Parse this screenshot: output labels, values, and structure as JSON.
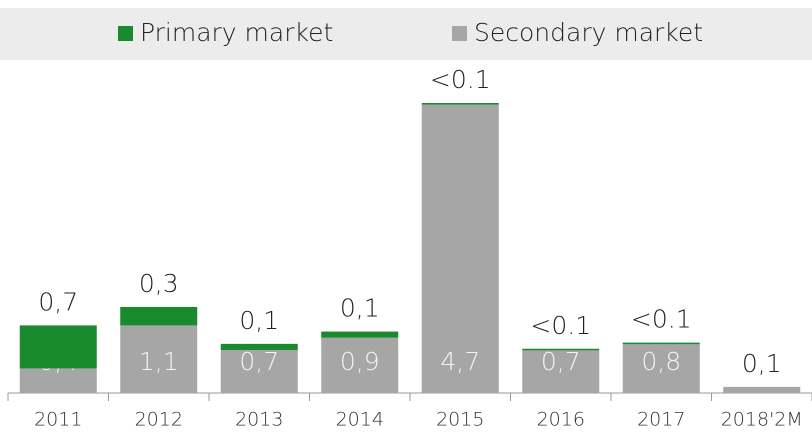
{
  "chart_data": {
    "type": "stacked_bar",
    "categories": [
      "2011",
      "2012",
      "2013",
      "2014",
      "2015",
      "2016",
      "2017",
      "2018'2M"
    ],
    "series": [
      {
        "name": "Secondary market",
        "color": "#a6a6a6",
        "values": [
          0.4,
          1.1,
          0.7,
          0.9,
          4.7,
          0.7,
          0.8,
          0.1
        ],
        "value_labels": [
          "0,4",
          "1,1",
          "0,7",
          "0,9",
          "4,7",
          "0,7",
          "0,8",
          "0,1"
        ]
      },
      {
        "name": "Primary market",
        "color": "#1a8a2e",
        "values": [
          0.7,
          0.3,
          0.1,
          0.1,
          0.02,
          0.02,
          0.02,
          null
        ],
        "value_labels": [
          "0,7",
          "0,3",
          "0,1",
          "0,1",
          "<0.1",
          "<0.1",
          "<0.1",
          null
        ]
      }
    ],
    "legend_order": [
      "Primary market",
      "Secondary market"
    ]
  }
}
